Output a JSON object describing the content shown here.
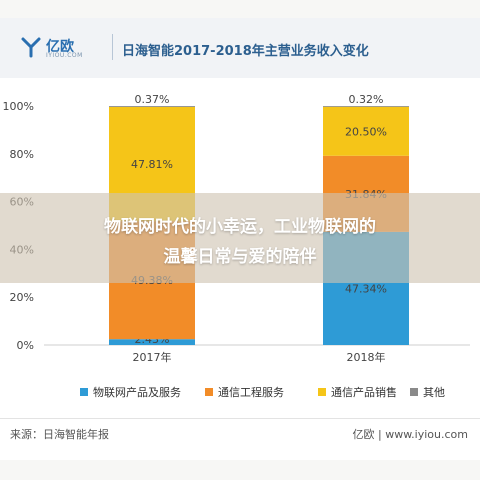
{
  "header": {
    "logo_text": "亿欧",
    "logo_sub": "IYIOU.COM",
    "title": "日海智能2017-2018年主营业务收入变化"
  },
  "overlay": {
    "line1": "物联网时代的小幸运，工业物联网的",
    "line2": "温馨日常与爱的陪伴"
  },
  "footer": {
    "source": "来源：日海智能年报",
    "site": "亿欧 | www.iyiou.com"
  },
  "colors": {
    "iot": "#2e9bd6",
    "engineering": "#f28c28",
    "sales": "#f5c518",
    "other": "#8a8a8a",
    "header_bg": "#f1f3f6"
  },
  "chart_data": {
    "type": "bar",
    "stacked": true,
    "title": "日海智能2017-2018年主营业务收入变化",
    "categories": [
      "2017年",
      "2018年"
    ],
    "y_ticks": [
      "0%",
      "20%",
      "40%",
      "60%",
      "80%",
      "100%"
    ],
    "ylim": [
      0,
      100
    ],
    "grid": false,
    "legend_position": "bottom",
    "series": [
      {
        "name": "物联网产品及服务",
        "values": [
          2.43,
          47.34
        ],
        "labels": [
          "2.43%",
          "47.34%"
        ],
        "color": "#2e9bd6"
      },
      {
        "name": "通信工程服务",
        "values": [
          49.38,
          31.84
        ],
        "labels": [
          "49.38%",
          "31.84%"
        ],
        "color": "#f28c28"
      },
      {
        "name": "通信产品销售",
        "values": [
          47.81,
          20.5
        ],
        "labels": [
          "47.81%",
          "20.50%"
        ],
        "color": "#f5c518"
      },
      {
        "name": "其他",
        "values": [
          0.37,
          0.32
        ],
        "labels": [
          "0.37%",
          "0.32%"
        ],
        "color": "#8a8a8a"
      }
    ]
  }
}
